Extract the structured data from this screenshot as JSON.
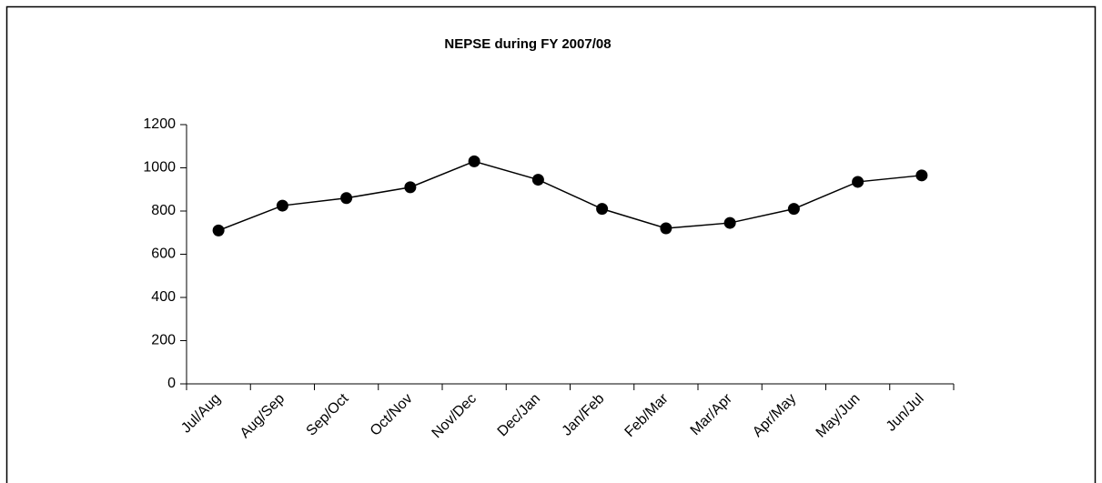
{
  "chart_data": {
    "type": "line",
    "title": "NEPSE during FY 2007/08",
    "categories": [
      "Jul/Aug",
      "Aug/Sep",
      "Sep/Oct",
      "Oct/Nov",
      "Nov/Dec",
      "Dec/Jan",
      "Jan/Feb",
      "Feb/Mar",
      "Mar/Apr",
      "Apr/May",
      "May/Jun",
      "Jun/Jul"
    ],
    "series": [
      {
        "name": "NEPSE",
        "color": "#000000",
        "values": [
          710,
          825,
          860,
          910,
          1030,
          945,
          810,
          720,
          745,
          810,
          935,
          965
        ]
      }
    ],
    "ylim": [
      0,
      1200
    ],
    "yticks": [
      0,
      200,
      400,
      600,
      800,
      1000,
      1200
    ],
    "grid": false
  }
}
